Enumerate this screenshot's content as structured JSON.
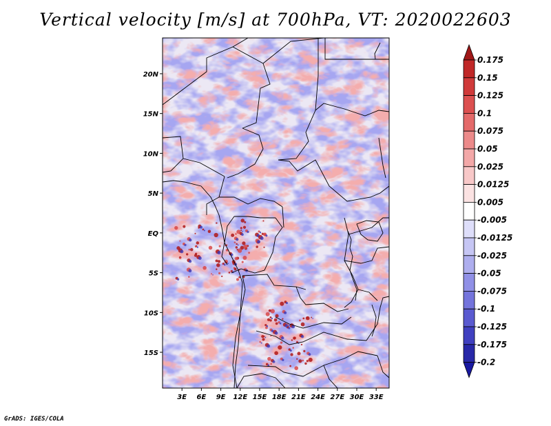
{
  "chart_data": {
    "type": "heatmap",
    "title": "Vertical velocity [m/s] at 700hPa, VT: 2020022603",
    "variable": "Vertical velocity",
    "units": "m/s",
    "level": "700hPa",
    "valid_time": "2020022603",
    "lon_range": [
      0,
      35
    ],
    "lat_range": [
      -19.5,
      24.5
    ],
    "x_ticks": [
      {
        "lon": 3,
        "label": "3E"
      },
      {
        "lon": 6,
        "label": "6E"
      },
      {
        "lon": 9,
        "label": "9E"
      },
      {
        "lon": 12,
        "label": "12E"
      },
      {
        "lon": 15,
        "label": "15E"
      },
      {
        "lon": 18,
        "label": "18E"
      },
      {
        "lon": 21,
        "label": "21E"
      },
      {
        "lon": 24,
        "label": "24E"
      },
      {
        "lon": 27,
        "label": "27E"
      },
      {
        "lon": 30,
        "label": "30E"
      },
      {
        "lon": 33,
        "label": "33E"
      }
    ],
    "y_ticks": [
      {
        "lat": 20,
        "label": "20N"
      },
      {
        "lat": 15,
        "label": "15N"
      },
      {
        "lat": 10,
        "label": "10N"
      },
      {
        "lat": 5,
        "label": "5N"
      },
      {
        "lat": 0,
        "label": "EQ"
      },
      {
        "lat": -5,
        "label": "5S"
      },
      {
        "lat": -10,
        "label": "10S"
      },
      {
        "lat": -15,
        "label": "15S"
      }
    ],
    "colorbar": {
      "levels": [
        {
          "label": "0.175",
          "value": 0.175
        },
        {
          "label": "0.15",
          "value": 0.15
        },
        {
          "label": "0.125",
          "value": 0.125
        },
        {
          "label": "0.1",
          "value": 0.1
        },
        {
          "label": "0.075",
          "value": 0.075
        },
        {
          "label": "0.05",
          "value": 0.05
        },
        {
          "label": "0.025",
          "value": 0.025
        },
        {
          "label": "0.0125",
          "value": 0.0125
        },
        {
          "label": "0.005",
          "value": 0.005
        },
        {
          "label": "-0.005",
          "value": -0.005
        },
        {
          "label": "-0.0125",
          "value": -0.0125
        },
        {
          "label": "-0.025",
          "value": -0.025
        },
        {
          "label": "-0.05",
          "value": -0.05
        },
        {
          "label": "-0.075",
          "value": -0.075
        },
        {
          "label": "-0.1",
          "value": -0.1
        },
        {
          "label": "-0.125",
          "value": -0.125
        },
        {
          "label": "-0.175",
          "value": -0.175
        },
        {
          "label": "-0.2",
          "value": -0.2
        }
      ],
      "colors": [
        "#a01818",
        "#c02828",
        "#d03a3a",
        "#dc5050",
        "#e46a6a",
        "#ec8a8a",
        "#f3a8a8",
        "#f8c8c8",
        "#fbe2e2",
        "#ffffff",
        "#dedefa",
        "#c6c6f4",
        "#aeaeee",
        "#9090e6",
        "#7474dc",
        "#5a5ad0",
        "#4040c0",
        "#2828a8",
        "#1818a0"
      ]
    }
  },
  "credit": "GrADS: IGES/COLA"
}
